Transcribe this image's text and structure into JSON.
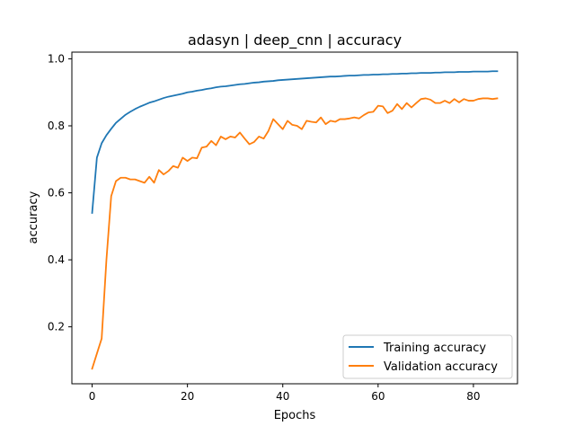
{
  "chart_data": {
    "type": "line",
    "title": "adasyn | deep_cnn | accuracy",
    "xlabel": "Epochs",
    "ylabel": "accuracy",
    "xlim": [
      -4.25,
      89.25
    ],
    "ylim": [
      0.03,
      1.02
    ],
    "x_ticks": [
      0,
      20,
      40,
      60,
      80
    ],
    "y_ticks": [
      0.2,
      0.4,
      0.6,
      0.8,
      1.0
    ],
    "x_tick_labels": [
      "0",
      "20",
      "40",
      "60",
      "80"
    ],
    "y_tick_labels": [
      "0.2",
      "0.4",
      "0.6",
      "0.8",
      "1.0"
    ],
    "grid": false,
    "legend_position": "lower right",
    "x": [
      0,
      1,
      2,
      3,
      4,
      5,
      6,
      7,
      8,
      9,
      10,
      11,
      12,
      13,
      14,
      15,
      16,
      17,
      18,
      19,
      20,
      21,
      22,
      23,
      24,
      25,
      26,
      27,
      28,
      29,
      30,
      31,
      32,
      33,
      34,
      35,
      36,
      37,
      38,
      39,
      40,
      41,
      42,
      43,
      44,
      45,
      46,
      47,
      48,
      49,
      50,
      51,
      52,
      53,
      54,
      55,
      56,
      57,
      58,
      59,
      60,
      61,
      62,
      63,
      64,
      65,
      66,
      67,
      68,
      69,
      70,
      71,
      72,
      73,
      74,
      75,
      76,
      77,
      78,
      79,
      80,
      81,
      82,
      83,
      84,
      85
    ],
    "series": [
      {
        "name": "Training accuracy",
        "color": "#1f77b4",
        "values": [
          0.54,
          0.705,
          0.748,
          0.772,
          0.791,
          0.809,
          0.821,
          0.833,
          0.842,
          0.85,
          0.857,
          0.863,
          0.869,
          0.873,
          0.878,
          0.883,
          0.887,
          0.89,
          0.893,
          0.896,
          0.9,
          0.902,
          0.905,
          0.907,
          0.91,
          0.912,
          0.915,
          0.917,
          0.918,
          0.92,
          0.922,
          0.924,
          0.925,
          0.927,
          0.929,
          0.93,
          0.932,
          0.933,
          0.934,
          0.936,
          0.937,
          0.938,
          0.939,
          0.94,
          0.941,
          0.942,
          0.943,
          0.944,
          0.945,
          0.946,
          0.947,
          0.947,
          0.948,
          0.949,
          0.95,
          0.95,
          0.951,
          0.952,
          0.952,
          0.953,
          0.953,
          0.954,
          0.954,
          0.955,
          0.955,
          0.956,
          0.956,
          0.957,
          0.957,
          0.958,
          0.958,
          0.958,
          0.959,
          0.959,
          0.96,
          0.96,
          0.96,
          0.961,
          0.961,
          0.961,
          0.962,
          0.962,
          0.962,
          0.962,
          0.963,
          0.963
        ]
      },
      {
        "name": "Validation accuracy",
        "color": "#ff7f0e",
        "values": [
          0.075,
          0.12,
          0.165,
          0.4,
          0.59,
          0.635,
          0.645,
          0.645,
          0.64,
          0.64,
          0.635,
          0.63,
          0.648,
          0.63,
          0.668,
          0.655,
          0.665,
          0.68,
          0.675,
          0.705,
          0.695,
          0.705,
          0.703,
          0.735,
          0.738,
          0.755,
          0.742,
          0.768,
          0.76,
          0.768,
          0.765,
          0.78,
          0.762,
          0.745,
          0.752,
          0.768,
          0.762,
          0.785,
          0.82,
          0.805,
          0.79,
          0.815,
          0.803,
          0.8,
          0.79,
          0.815,
          0.812,
          0.81,
          0.825,
          0.805,
          0.815,
          0.812,
          0.82,
          0.82,
          0.822,
          0.825,
          0.822,
          0.832,
          0.84,
          0.842,
          0.86,
          0.858,
          0.838,
          0.845,
          0.865,
          0.85,
          0.868,
          0.855,
          0.868,
          0.88,
          0.882,
          0.878,
          0.868,
          0.868,
          0.875,
          0.868,
          0.88,
          0.87,
          0.88,
          0.875,
          0.875,
          0.88,
          0.882,
          0.882,
          0.88,
          0.882
        ]
      }
    ]
  }
}
